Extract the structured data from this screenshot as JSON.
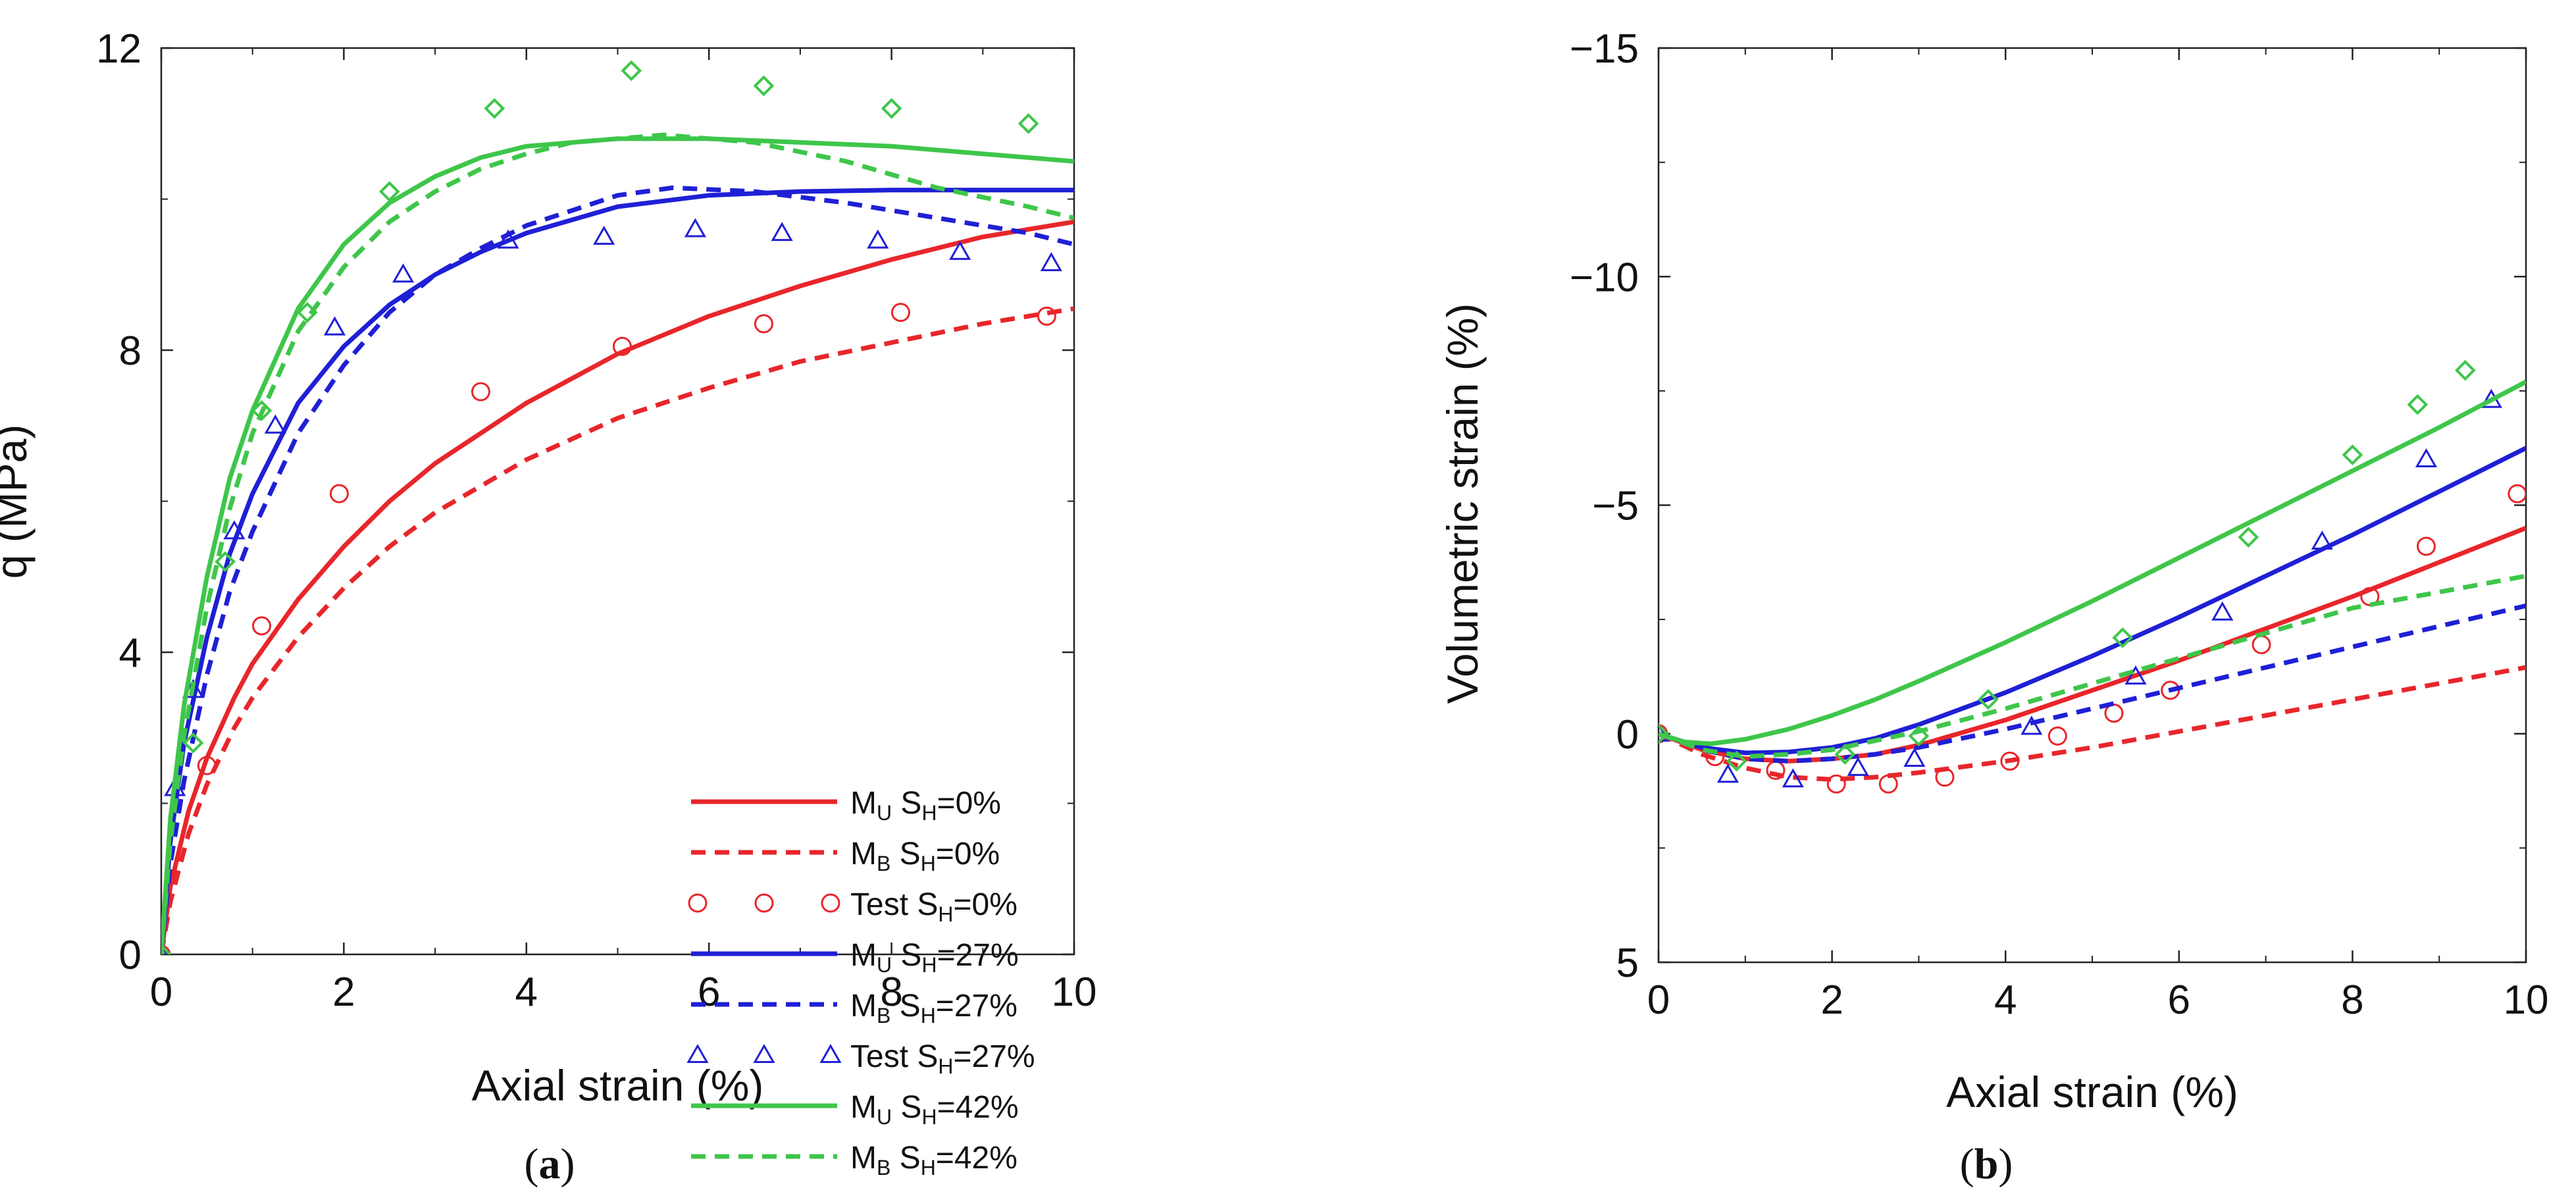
{
  "chart_data": [
    {
      "id": "a",
      "type": "line",
      "panel_label": "a",
      "xlabel": "Axial strain (%)",
      "ylabel": "q (MPa)",
      "xlim": [
        0,
        10
      ],
      "ylim": [
        0,
        12
      ],
      "x_ticks": [
        0,
        2,
        4,
        6,
        8,
        10
      ],
      "y_ticks": [
        0,
        4,
        8,
        12
      ],
      "y_tick_labels": [
        "0",
        "4",
        "8",
        "12"
      ],
      "legend_position": "bottom-right",
      "grid": false,
      "series": [
        {
          "name": "M_U S_H=0%",
          "legend_prefix": "M",
          "legend_sub": "U",
          "legend_suffix": "=0%",
          "kind": "line",
          "dash": "solid",
          "color": "#e8262b",
          "x": [
            0,
            0.1,
            0.3,
            0.5,
            0.8,
            1,
            1.5,
            2,
            2.5,
            3,
            3.5,
            4,
            5,
            6,
            7,
            8,
            9,
            10
          ],
          "y": [
            0,
            0.9,
            1.9,
            2.6,
            3.4,
            3.85,
            4.7,
            5.4,
            6.0,
            6.5,
            6.9,
            7.3,
            7.95,
            8.45,
            8.85,
            9.2,
            9.5,
            9.7
          ]
        },
        {
          "name": "M_B S_H=0%",
          "legend_prefix": "M",
          "legend_sub": "B",
          "legend_suffix": "=0%",
          "kind": "line",
          "dash": "dashed",
          "color": "#e8262b",
          "x": [
            0,
            0.1,
            0.3,
            0.5,
            0.8,
            1,
            1.5,
            2,
            2.5,
            3,
            3.5,
            4,
            5,
            6,
            7,
            8,
            9,
            10
          ],
          "y": [
            0,
            0.7,
            1.6,
            2.25,
            3.0,
            3.4,
            4.2,
            4.85,
            5.4,
            5.85,
            6.2,
            6.55,
            7.1,
            7.5,
            7.85,
            8.1,
            8.35,
            8.55
          ]
        },
        {
          "name": "Test S_H=0%",
          "legend_prefix": "Test",
          "legend_sub": "",
          "legend_suffix": "=0%",
          "kind": "marker",
          "marker": "circle",
          "color": "#e8262b",
          "x": [
            0,
            0.5,
            1.1,
            1.95,
            3.5,
            5.05,
            6.6,
            8.1,
            9.7
          ],
          "y": [
            0,
            2.5,
            4.35,
            6.1,
            7.45,
            8.05,
            8.35,
            8.5,
            8.45
          ]
        },
        {
          "name": "M_U S_H=27%",
          "legend_prefix": "M",
          "legend_sub": "U",
          "legend_suffix": "=27%",
          "kind": "line",
          "dash": "solid",
          "color": "#1f1fd6",
          "x": [
            0,
            0.1,
            0.25,
            0.5,
            0.75,
            1,
            1.5,
            2,
            2.5,
            3,
            3.5,
            4,
            5,
            6,
            7,
            8,
            9,
            10
          ],
          "y": [
            0,
            1.5,
            2.8,
            4.2,
            5.3,
            6.1,
            7.3,
            8.05,
            8.6,
            9.0,
            9.3,
            9.55,
            9.9,
            10.05,
            10.1,
            10.12,
            10.12,
            10.12
          ]
        },
        {
          "name": "M_B S_H=27%",
          "legend_prefix": "M",
          "legend_sub": "B",
          "legend_suffix": "=27%",
          "kind": "line",
          "dash": "dashed",
          "color": "#1f1fd6",
          "x": [
            0,
            0.1,
            0.25,
            0.5,
            0.75,
            1,
            1.5,
            2,
            2.5,
            3,
            3.5,
            4,
            5,
            5.6,
            6.5,
            7.5,
            8.5,
            9.5,
            10
          ],
          "y": [
            0,
            1.2,
            2.3,
            3.7,
            4.8,
            5.6,
            6.9,
            7.8,
            8.5,
            9.0,
            9.35,
            9.65,
            10.05,
            10.15,
            10.1,
            9.95,
            9.75,
            9.55,
            9.4
          ]
        },
        {
          "name": "Test S_H=27%",
          "legend_prefix": "Test",
          "legend_sub": "",
          "legend_suffix": "=27%",
          "kind": "marker",
          "marker": "triangle",
          "color": "#1f1fd6",
          "x": [
            0,
            0.15,
            0.35,
            0.8,
            1.25,
            1.9,
            2.65,
            3.8,
            4.85,
            5.85,
            6.8,
            7.85,
            8.75,
            9.75
          ],
          "y": [
            0,
            2.2,
            3.5,
            5.6,
            7.0,
            8.3,
            9.0,
            9.45,
            9.5,
            9.6,
            9.55,
            9.45,
            9.3,
            9.15
          ]
        },
        {
          "name": "M_U S_H=42%",
          "legend_prefix": "M",
          "legend_sub": "U",
          "legend_suffix": "=42%",
          "kind": "line",
          "dash": "solid",
          "color": "#3ec64a",
          "x": [
            0,
            0.1,
            0.25,
            0.5,
            0.75,
            1,
            1.5,
            2,
            2.5,
            3,
            3.5,
            4,
            5,
            6,
            7,
            8,
            9,
            10
          ],
          "y": [
            0,
            1.8,
            3.3,
            5.0,
            6.3,
            7.2,
            8.55,
            9.4,
            9.95,
            10.3,
            10.55,
            10.7,
            10.8,
            10.8,
            10.75,
            10.7,
            10.6,
            10.5
          ]
        },
        {
          "name": "M_B S_H=42%",
          "legend_prefix": "M",
          "legend_sub": "B",
          "legend_suffix": "=42%",
          "kind": "line",
          "dash": "dashed",
          "color": "#3ec64a",
          "x": [
            0,
            0.1,
            0.25,
            0.5,
            0.75,
            1,
            1.5,
            2,
            2.5,
            3,
            3.5,
            4,
            4.5,
            5.5,
            6.5,
            7.5,
            8.5,
            9.5,
            10
          ],
          "y": [
            0,
            1.5,
            2.9,
            4.6,
            5.9,
            6.9,
            8.25,
            9.1,
            9.7,
            10.1,
            10.4,
            10.6,
            10.75,
            10.85,
            10.75,
            10.5,
            10.15,
            9.9,
            9.75
          ]
        },
        {
          "name": "Test S_H=42%",
          "legend_prefix": "Test",
          "legend_sub": "",
          "legend_suffix": "=42%",
          "kind": "marker",
          "marker": "diamond",
          "color": "#3ec64a",
          "x": [
            0,
            0.35,
            0.7,
            1.1,
            1.6,
            2.5,
            3.65,
            5.15,
            6.6,
            8.0,
            9.5
          ],
          "y": [
            0,
            2.8,
            5.2,
            7.2,
            8.5,
            10.1,
            11.2,
            11.7,
            11.5,
            11.2,
            11.0
          ]
        }
      ]
    },
    {
      "id": "b",
      "type": "line",
      "panel_label": "b",
      "xlabel": "Axial strain (%)",
      "ylabel": "Volumetric strain (%)",
      "xlim": [
        0,
        10
      ],
      "ylim": [
        5,
        -15
      ],
      "x_ticks": [
        0,
        2,
        4,
        6,
        8,
        10
      ],
      "y_ticks": [
        5,
        0,
        -5,
        -10,
        -15
      ],
      "y_tick_labels": [
        "5",
        "0",
        "−5",
        "−10",
        "−15"
      ],
      "grid": false,
      "series": [
        {
          "name": "M_U S_H=0%",
          "kind": "line",
          "dash": "solid",
          "color": "#e8262b",
          "x": [
            0,
            0.5,
            1,
            1.5,
            2,
            2.5,
            3,
            4,
            5,
            6,
            7,
            8,
            9,
            10
          ],
          "y": [
            0,
            0.35,
            0.55,
            0.6,
            0.55,
            0.45,
            0.25,
            -0.3,
            -0.95,
            -1.6,
            -2.3,
            -3.0,
            -3.75,
            -4.5
          ]
        },
        {
          "name": "M_B S_H=0%",
          "kind": "line",
          "dash": "dashed",
          "color": "#e8262b",
          "x": [
            0,
            0.5,
            1,
            1.5,
            2,
            2.5,
            3,
            4,
            5,
            6,
            7,
            8,
            9,
            10
          ],
          "y": [
            0,
            0.45,
            0.75,
            0.95,
            1.0,
            0.95,
            0.85,
            0.6,
            0.3,
            -0.05,
            -0.4,
            -0.75,
            -1.1,
            -1.45
          ]
        },
        {
          "name": "Test S_H=0%",
          "kind": "marker",
          "marker": "circle",
          "color": "#e8262b",
          "x": [
            0,
            0.65,
            1.35,
            2.05,
            2.65,
            3.3,
            4.05,
            4.6,
            5.25,
            5.9,
            6.95,
            8.2,
            8.85,
            9.9
          ],
          "y": [
            0,
            0.5,
            0.8,
            1.1,
            1.1,
            0.95,
            0.6,
            0.05,
            -0.45,
            -0.95,
            -1.95,
            -3.0,
            -4.1,
            -5.25
          ]
        },
        {
          "name": "M_U S_H=27%",
          "kind": "line",
          "dash": "solid",
          "color": "#1f1fd6",
          "x": [
            0,
            0.5,
            1,
            1.5,
            2,
            2.5,
            3,
            4,
            5,
            6,
            7,
            8,
            9,
            10
          ],
          "y": [
            0,
            0.3,
            0.42,
            0.4,
            0.3,
            0.1,
            -0.2,
            -0.9,
            -1.7,
            -2.55,
            -3.45,
            -4.35,
            -5.3,
            -6.25
          ]
        },
        {
          "name": "M_B S_H=27%",
          "kind": "line",
          "dash": "dashed",
          "color": "#1f1fd6",
          "x": [
            0,
            0.5,
            1,
            1.5,
            2,
            2.5,
            3,
            4,
            5,
            6,
            7,
            8,
            9,
            10
          ],
          "y": [
            0,
            0.35,
            0.55,
            0.6,
            0.55,
            0.45,
            0.3,
            -0.1,
            -0.55,
            -1.0,
            -1.45,
            -1.9,
            -2.35,
            -2.8
          ]
        },
        {
          "name": "Test S_H=27%",
          "kind": "marker",
          "marker": "triangle",
          "color": "#1f1fd6",
          "x": [
            0,
            0.8,
            1.55,
            2.3,
            2.95,
            4.3,
            5.5,
            6.5,
            7.65,
            8.85,
            9.6
          ],
          "y": [
            0,
            0.9,
            1.0,
            0.75,
            0.55,
            -0.15,
            -1.25,
            -2.65,
            -4.2,
            -6.0,
            -7.3
          ]
        },
        {
          "name": "M_U S_H=42%",
          "kind": "line",
          "dash": "solid",
          "color": "#3ec64a",
          "x": [
            0,
            0.3,
            0.6,
            1,
            1.5,
            2,
            2.5,
            3,
            4,
            5,
            6,
            7,
            8,
            9,
            10
          ],
          "y": [
            0,
            0.18,
            0.22,
            0.12,
            -0.1,
            -0.4,
            -0.75,
            -1.15,
            -2.0,
            -2.9,
            -3.85,
            -4.8,
            -5.75,
            -6.7,
            -7.7
          ]
        },
        {
          "name": "M_B S_H=42%",
          "kind": "line",
          "dash": "dashed",
          "color": "#3ec64a",
          "x": [
            0,
            0.5,
            1,
            1.5,
            2,
            2.5,
            3,
            4,
            5,
            6,
            7,
            8,
            9,
            10
          ],
          "y": [
            0,
            0.35,
            0.5,
            0.45,
            0.35,
            0.15,
            -0.05,
            -0.55,
            -1.1,
            -1.65,
            -2.2,
            -2.75,
            -3.1,
            -3.45
          ]
        },
        {
          "name": "Test S_H=42%",
          "kind": "marker",
          "marker": "diamond",
          "color": "#3ec64a",
          "x": [
            0,
            0.9,
            2.15,
            3.0,
            3.8,
            5.35,
            6.8,
            8.0,
            8.75,
            9.3
          ],
          "y": [
            0,
            0.6,
            0.45,
            0.05,
            -0.75,
            -2.1,
            -4.3,
            -6.1,
            -7.2,
            -7.95
          ]
        }
      ]
    }
  ]
}
